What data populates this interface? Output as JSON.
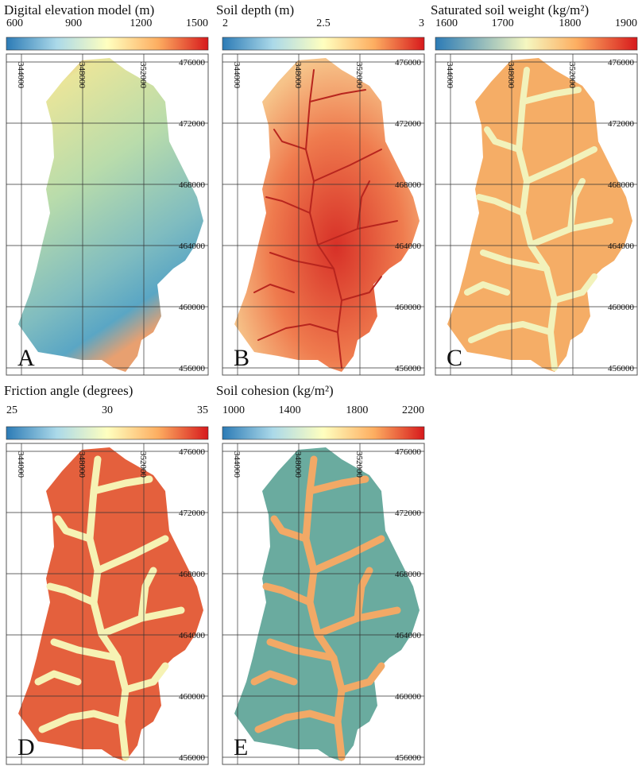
{
  "panels": [
    {
      "title": "Digital elevation model (m)",
      "colorbar_ticks": [
        600,
        900,
        1200,
        1500
      ],
      "letter": "A"
    },
    {
      "title": "Soil depth (m)",
      "colorbar_ticks": [
        2,
        2.5,
        3
      ],
      "letter": "B"
    },
    {
      "title": "Saturated soil weight (kg/m²)",
      "colorbar_ticks": [
        1600,
        1700,
        1800,
        1900
      ],
      "letter": "C"
    },
    {
      "title": "Friction angle (degrees)",
      "colorbar_ticks": [
        25,
        30,
        35
      ],
      "letter": "D"
    },
    {
      "title": "Soil cohesion (kg/m²)",
      "colorbar_ticks": [
        1000,
        1400,
        1800,
        2200
      ],
      "letter": "E"
    }
  ],
  "grid": {
    "eastings": [
      344000,
      348000,
      352000
    ],
    "northings": [
      476000,
      472000,
      468000,
      464000,
      460000,
      456000
    ]
  }
}
